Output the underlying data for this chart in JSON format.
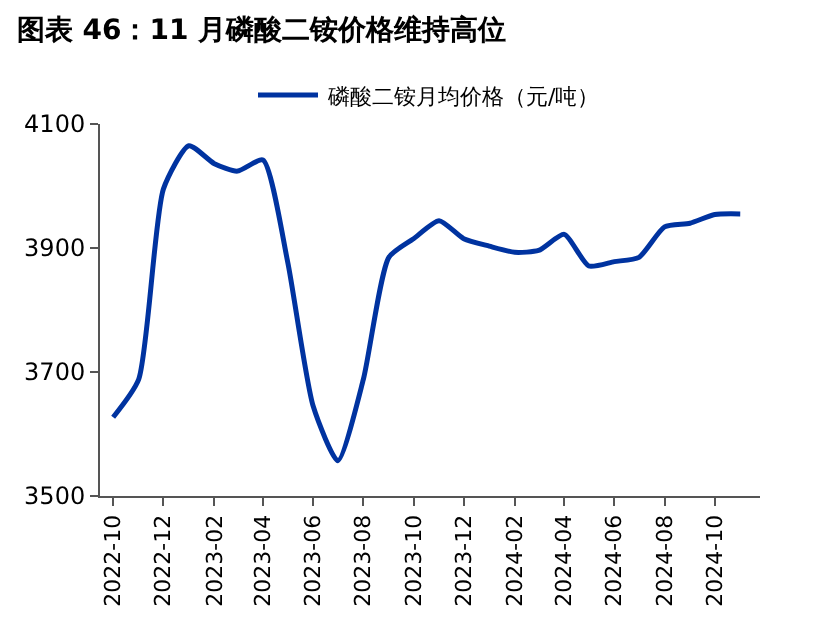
{
  "chart_data": {
    "type": "line",
    "title": "图表 46：11 月磷酸二铵价格维持高位",
    "x": [
      "2022-10",
      "2022-11",
      "2022-12",
      "2023-01",
      "2023-02",
      "2023-03",
      "2023-04",
      "2023-05",
      "2023-06",
      "2023-07",
      "2023-08",
      "2023-09",
      "2023-10",
      "2023-11",
      "2023-12",
      "2024-01",
      "2024-02",
      "2024-03",
      "2024-04",
      "2024-05",
      "2024-06",
      "2024-07",
      "2024-08",
      "2024-09",
      "2024-10",
      "2024-11"
    ],
    "series": [
      {
        "name": "磷酸二铵月均价格（元/吨）",
        "color": "#0033a0",
        "values": [
          3627,
          3688,
          3995,
          4065,
          4036,
          4024,
          4042,
          3878,
          3645,
          3557,
          3688,
          3885,
          3915,
          3944,
          3915,
          3903,
          3893,
          3896,
          3922,
          3871,
          3878,
          3885,
          3934,
          3940,
          3954,
          3955
        ]
      }
    ],
    "xlim": [
      "2022-09-15",
      "2024-11-25"
    ],
    "xticks": [
      "2022-10",
      "2022-12",
      "2023-02",
      "2023-04",
      "2023-06",
      "2023-08",
      "2023-10",
      "2023-12",
      "2024-02",
      "2024-04",
      "2024-06",
      "2024-08",
      "2024-10"
    ],
    "ylim": [
      3500,
      4100
    ],
    "yticks": [
      3500,
      3700,
      3900,
      4100
    ],
    "legend": "top",
    "marker": "none",
    "line_style": "solid"
  }
}
